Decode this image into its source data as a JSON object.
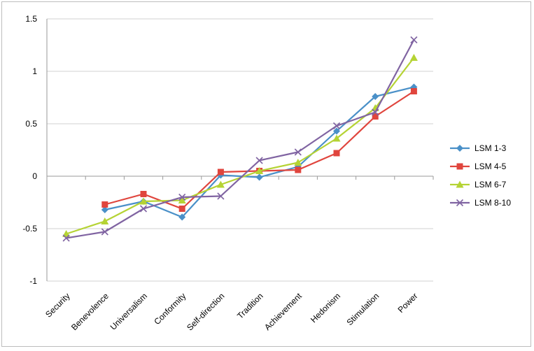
{
  "chart_data": {
    "type": "line",
    "title": "",
    "xlabel": "",
    "ylabel": "",
    "categories": [
      "Security",
      "Benevolence",
      "Universalism",
      "Conformity",
      "Self-direction",
      "Tradition",
      "Achievement",
      "Hedonism",
      "Stimulation",
      "Power"
    ],
    "ylim": [
      -1,
      1.5
    ],
    "yticks": [
      -1,
      -0.5,
      0,
      0.5,
      1,
      1.5
    ],
    "ytick_labels": [
      "-1",
      "-0.5",
      "0",
      "0.5",
      "1",
      "1.5"
    ],
    "grid": "horizontal",
    "legend": "right",
    "series": [
      {
        "name": "LSM 1-3",
        "color": "#4a90c8",
        "marker": "diamond",
        "values": [
          null,
          -0.32,
          -0.24,
          -0.39,
          0.01,
          -0.01,
          0.09,
          0.43,
          0.76,
          0.85
        ]
      },
      {
        "name": "LSM 4-5",
        "color": "#e0453d",
        "marker": "square",
        "values": [
          null,
          -0.27,
          -0.17,
          -0.31,
          0.04,
          0.05,
          0.06,
          0.22,
          0.57,
          0.81
        ]
      },
      {
        "name": "LSM 6-7",
        "color": "#b5d334",
        "marker": "triangle",
        "values": [
          -0.55,
          -0.43,
          -0.24,
          -0.23,
          -0.08,
          0.05,
          0.13,
          0.36,
          0.65,
          1.13
        ]
      },
      {
        "name": "LSM 8-10",
        "color": "#8064a2",
        "marker": "x",
        "values": [
          -0.59,
          -0.53,
          -0.31,
          -0.2,
          -0.19,
          0.15,
          0.23,
          0.48,
          0.61,
          1.3
        ]
      }
    ]
  }
}
